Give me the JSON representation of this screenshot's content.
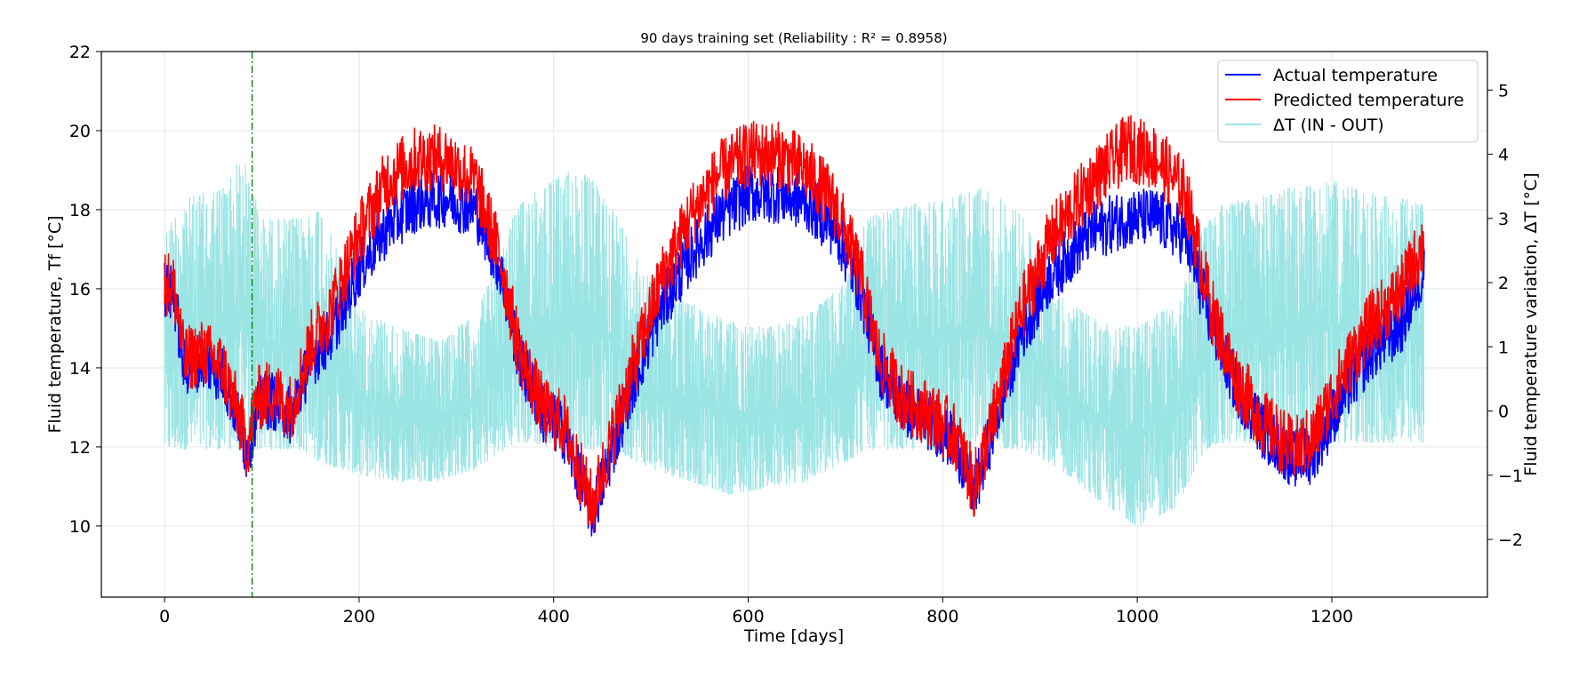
{
  "chart_data": {
    "type": "line",
    "title": "90 days training set (Reliability : R² = 0.8958)",
    "xlabel": "Time [days]",
    "ylabel_left": "Fluid temperature, Tf [°C]",
    "ylabel_right": "Fluid temperature variation, ΔT [°C]",
    "xlim": [
      -65,
      1360
    ],
    "ylim_left": [
      8.2,
      22
    ],
    "ylim_right": [
      -2.9,
      5.6
    ],
    "x_ticks": [
      0,
      200,
      400,
      600,
      800,
      1000,
      1200
    ],
    "x_tick_labels": [
      "0",
      "200",
      "400",
      "600",
      "800",
      "1000",
      "1200"
    ],
    "y_left_ticks": [
      10,
      12,
      14,
      16,
      18,
      20,
      22
    ],
    "y_left_tick_labels": [
      "10",
      "12",
      "14",
      "16",
      "18",
      "20",
      "22"
    ],
    "y_right_ticks": [
      -2,
      -1,
      0,
      1,
      2,
      3,
      4,
      5
    ],
    "y_right_tick_labels": [
      "−2",
      "−1",
      "0",
      "1",
      "2",
      "3",
      "4",
      "5"
    ],
    "grid": true,
    "legend_position": "top-right",
    "training_split_day": 90,
    "series": [
      {
        "name": "Actual temperature",
        "axis": "left",
        "color": "#0000ff",
        "x": [
          0,
          10,
          20,
          40,
          60,
          75,
          85,
          95,
          110,
          130,
          150,
          170,
          200,
          230,
          260,
          290,
          320,
          345,
          365,
          390,
          410,
          425,
          440,
          455,
          480,
          510,
          540,
          570,
          600,
          630,
          660,
          690,
          715,
          735,
          760,
          790,
          815,
          832,
          850,
          880,
          910,
          950,
          990,
          1020,
          1050,
          1075,
          1100,
          1130,
          1160,
          1180,
          1210,
          1240,
          1270,
          1295
        ],
        "y": [
          16.0,
          15.8,
          14.0,
          14.2,
          13.8,
          12.8,
          11.8,
          13.0,
          13.2,
          12.8,
          14.2,
          14.8,
          16.5,
          17.6,
          18.2,
          18.3,
          18.0,
          16.5,
          14.2,
          12.8,
          12.4,
          11.3,
          10.3,
          11.5,
          13.5,
          15.5,
          16.8,
          17.8,
          18.4,
          18.4,
          18.2,
          17.5,
          16.0,
          14.0,
          13.0,
          12.6,
          12.0,
          10.8,
          12.3,
          14.8,
          16.3,
          17.4,
          17.8,
          17.8,
          17.3,
          15.2,
          13.6,
          12.4,
          11.7,
          11.8,
          13.2,
          14.4,
          15.0,
          16.5
        ]
      },
      {
        "name": "Predicted temperature",
        "axis": "left",
        "color": "#ff0000",
        "x": [
          0,
          10,
          20,
          40,
          60,
          75,
          85,
          95,
          110,
          130,
          150,
          170,
          200,
          230,
          260,
          290,
          320,
          345,
          365,
          390,
          410,
          425,
          440,
          455,
          480,
          510,
          540,
          570,
          600,
          630,
          660,
          690,
          715,
          735,
          760,
          790,
          815,
          832,
          850,
          880,
          910,
          950,
          990,
          1020,
          1050,
          1075,
          1100,
          1130,
          1160,
          1180,
          1210,
          1240,
          1270,
          1295
        ],
        "y": [
          16.2,
          16.0,
          14.2,
          14.4,
          14.0,
          12.9,
          12.0,
          13.2,
          13.4,
          13.0,
          14.6,
          15.4,
          17.4,
          18.8,
          19.3,
          19.3,
          18.7,
          16.8,
          14.4,
          12.9,
          12.6,
          11.5,
          10.5,
          11.8,
          13.9,
          16.2,
          17.8,
          18.9,
          19.4,
          19.4,
          19.0,
          18.1,
          16.4,
          14.2,
          13.2,
          12.8,
          12.2,
          11.0,
          12.5,
          15.4,
          17.2,
          18.6,
          19.6,
          19.3,
          18.4,
          15.6,
          13.8,
          12.6,
          11.9,
          12.2,
          13.8,
          15.1,
          15.9,
          17.2
        ]
      },
      {
        "name": "ΔT (IN - OUT)",
        "axis": "right",
        "color": "#9be4e4",
        "x": [
          0,
          20,
          40,
          60,
          80,
          100,
          120,
          140,
          160,
          200,
          240,
          280,
          320,
          360,
          380,
          400,
          420,
          440,
          460,
          500,
          540,
          580,
          620,
          660,
          700,
          720,
          760,
          800,
          840,
          880,
          920,
          960,
          1000,
          1040,
          1070,
          1090,
          1120,
          1160,
          1200,
          1240,
          1280,
          1295
        ],
        "upper": [
          2.8,
          3.3,
          3.4,
          3.5,
          4.0,
          3.0,
          3.0,
          3.0,
          3.2,
          1.6,
          1.3,
          1.1,
          1.5,
          3.1,
          3.5,
          3.6,
          3.8,
          3.6,
          3.2,
          2.0,
          1.7,
          1.4,
          1.3,
          1.5,
          2.0,
          3.0,
          3.2,
          3.3,
          3.5,
          3.1,
          1.8,
          1.4,
          1.3,
          1.8,
          2.9,
          3.3,
          3.3,
          3.5,
          3.6,
          3.4,
          3.3,
          3.2
        ],
        "lower": [
          -0.6,
          -0.6,
          -0.6,
          -0.6,
          -0.6,
          -0.6,
          -0.6,
          -0.6,
          -0.8,
          -1.0,
          -1.1,
          -1.1,
          -0.9,
          -0.5,
          -0.5,
          -0.6,
          -0.6,
          -0.6,
          -0.6,
          -0.9,
          -1.1,
          -1.3,
          -1.2,
          -1.1,
          -0.8,
          -0.6,
          -0.6,
          -0.6,
          -0.6,
          -0.6,
          -0.9,
          -1.4,
          -1.8,
          -1.5,
          -0.6,
          -0.5,
          -0.5,
          -0.5,
          -0.5,
          -0.5,
          -0.5,
          -0.5
        ]
      }
    ]
  }
}
